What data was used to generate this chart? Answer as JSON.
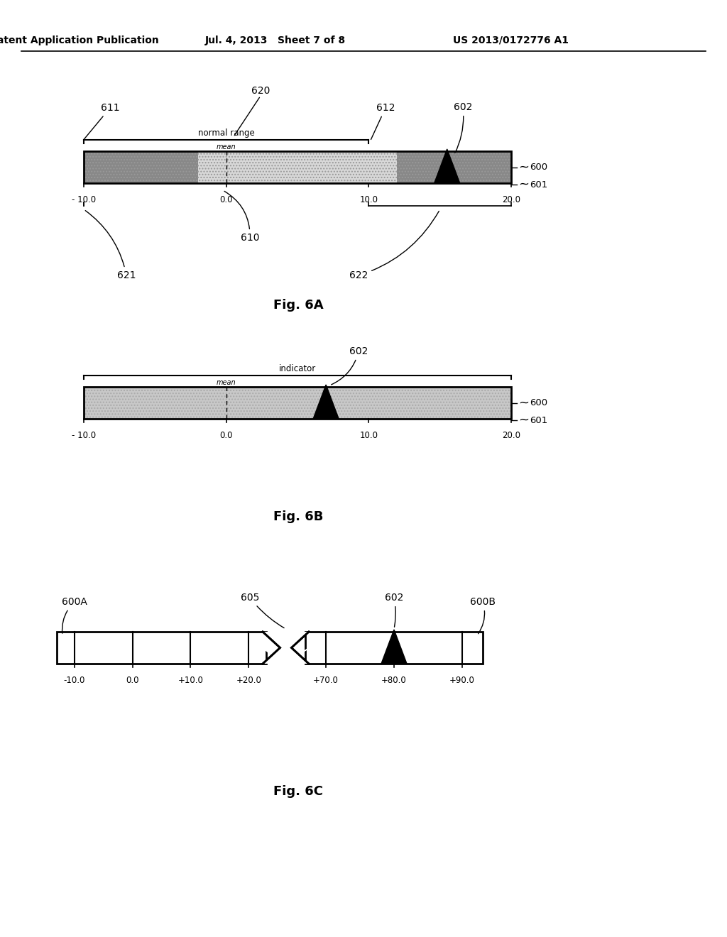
{
  "bg_color": "#ffffff",
  "header_left": "Patent Application Publication",
  "header_mid": "Jul. 4, 2013   Sheet 7 of 8",
  "header_right": "US 2013/0172776 A1",
  "fig6a_label": "Fig. 6A",
  "fig6b_label": "Fig. 6B",
  "fig6c_label": "Fig. 6C",
  "gray_dark": "#aaaaaa",
  "gray_light": "#d8d8d8",
  "gray_stipple": "#cccccc",
  "black": "#000000",
  "white": "#ffffff"
}
